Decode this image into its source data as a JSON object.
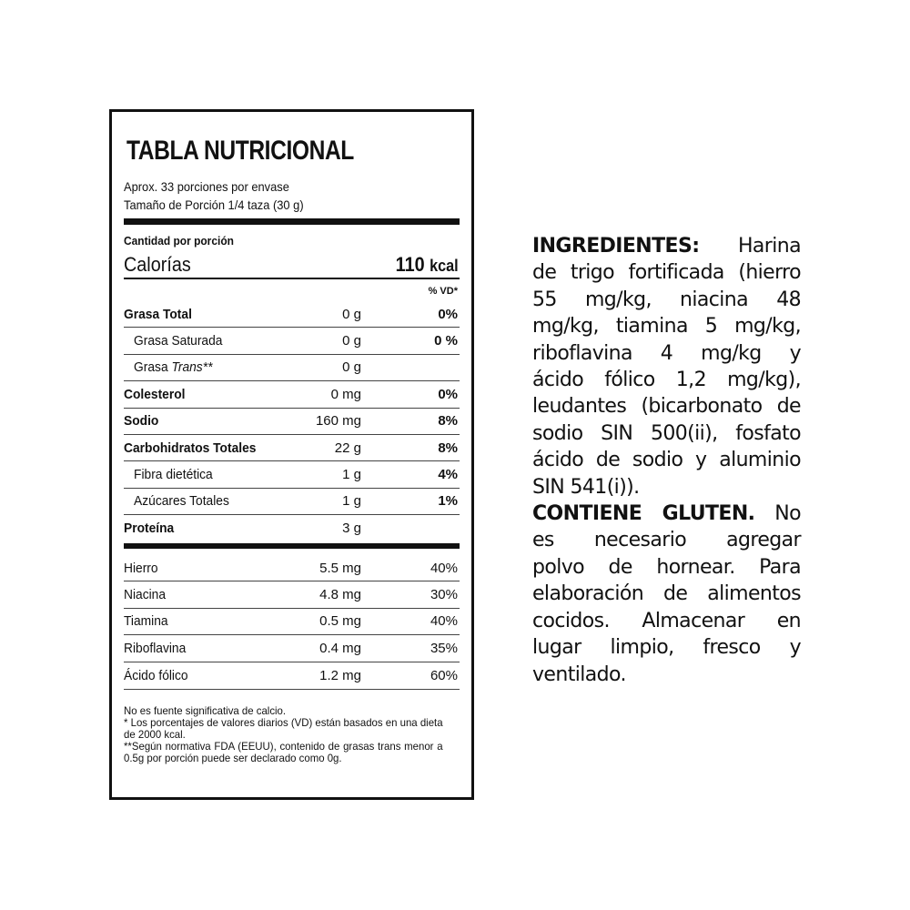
{
  "label": {
    "title": "TABLA NUTRICIONAL",
    "servings": "Aprox. 33 porciones por envase",
    "serving_size": "Tamaño de Porción 1/4 taza (30 g)",
    "amount_per_serving": "Cantidad por porción",
    "calories_label": "Calorías",
    "calories_value": "110",
    "calories_unit": "kcal",
    "vd_header": "% VD*",
    "nutrients": [
      {
        "name": "Grasa Total",
        "amount": "0 g",
        "dv": "0%",
        "bold": true
      },
      {
        "name": "Grasa Saturada",
        "amount": "0 g",
        "dv": "0 %",
        "indent": true
      },
      {
        "name": "Grasa ",
        "name_italic": "Trans**",
        "amount": "0 g",
        "dv": "",
        "indent": true
      },
      {
        "name": "Colesterol",
        "amount": "0 mg",
        "dv": "0%",
        "bold": true
      },
      {
        "name": "Sodio",
        "amount": "160 mg",
        "dv": "8%",
        "bold": true
      },
      {
        "name": "Carbohidratos Totales",
        "amount": "22 g",
        "dv": "8%",
        "bold": true
      },
      {
        "name": "Fibra dietética",
        "amount": "1 g",
        "dv": "4%",
        "indent": true
      },
      {
        "name": "Azúcares Totales",
        "amount": "1 g",
        "dv": "1%",
        "indent": true
      },
      {
        "name": "Proteína",
        "amount": "3 g",
        "dv": "",
        "bold": true
      }
    ],
    "micronutrients": [
      {
        "name": "Hierro",
        "amount": "5.5 mg",
        "dv": "40%"
      },
      {
        "name": "Niacina",
        "amount": "4.8 mg",
        "dv": "30%"
      },
      {
        "name": "Tiamina",
        "amount": "0.5 mg",
        "dv": "40%"
      },
      {
        "name": "Riboflavina",
        "amount": "0.4 mg",
        "dv": "35%"
      },
      {
        "name": "Ácido fólico",
        "amount": "1.2 mg",
        "dv": "60%"
      }
    ],
    "notes": [
      "No es fuente significativa de calcio.",
      "* Los porcentajes de valores diarios (VD) están basados en una dieta de 2000 kcal.",
      "**Según normativa FDA (EEUU), contenido de grasas trans menor a 0.5g por porción puede ser declarado como 0g."
    ]
  },
  "ingredients": {
    "lines": [
      {
        "bold": "INGREDIENTES:",
        "text": "Harina"
      },
      {
        "text": "de trigo fortificada (hierro"
      },
      {
        "text": "55 mg/kg, niacina 48"
      },
      {
        "text": "mg/kg, tiamina 5 mg/kg,"
      },
      {
        "text": "riboflavina 4 mg/kg y"
      },
      {
        "text": "ácido fólico 1,2 mg/kg),"
      },
      {
        "text": "leudantes (bicarbonato de"
      },
      {
        "text": "sodio SIN 500(ii), fosfato"
      },
      {
        "text": "ácido de sodio y aluminio"
      },
      {
        "text": "SIN 541(i)).",
        "last": true
      },
      {
        "bold": "CONTIENE GLUTEN.",
        "text": "No"
      },
      {
        "text": "es necesario agregar"
      },
      {
        "text": "polvo de hornear. Para"
      },
      {
        "text": "elaboración de alimentos"
      },
      {
        "text": "cocidos. Almacenar en"
      },
      {
        "text": "lugar limpio, fresco y"
      },
      {
        "text": "ventilado.",
        "last": true
      }
    ]
  }
}
